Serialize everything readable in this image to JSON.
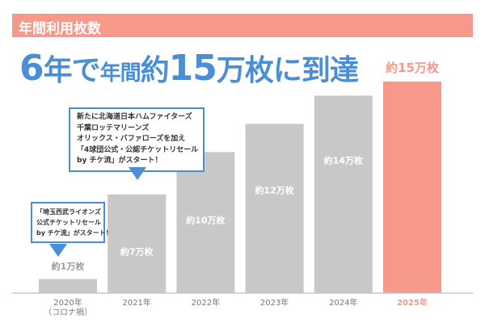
{
  "header": {
    "title": "年間利用枚数"
  },
  "headline": {
    "p1": "6",
    "p2": "年で",
    "p3": "年間",
    "p4": "約",
    "p5": "15",
    "p6": "万枚",
    "p7": "に到達"
  },
  "callouts": [
    {
      "text": "「埼玉西武ライオンズ\n公式チケットリセール\nby チケ流」がスタート！"
    },
    {
      "text": "新たに北海道日本ハムファイターズ\n千葉ロッテマリーンズ\nオリックス・バファローズを加え\n「4球団公式・公認チケットリセール\nby チケ流」がスタート！"
    }
  ],
  "chart_data": {
    "type": "bar",
    "categories": [
      "2020年\n（コロナ禍）",
      "2021年",
      "2022年",
      "2023年",
      "2024年",
      "2025年"
    ],
    "values": [
      1,
      7,
      10,
      12,
      14,
      15
    ],
    "unit": "万枚",
    "data_labels": [
      "約1万枚",
      "約7万枚",
      "約10万枚",
      "約12万枚",
      "約14万枚",
      "約15万枚"
    ],
    "ylim": [
      0,
      15
    ],
    "grid": false,
    "colors": {
      "bar": "#c8c8c8",
      "highlight": "#f7998a",
      "accent": "#4a8fd6"
    },
    "highlight_index": 5
  }
}
